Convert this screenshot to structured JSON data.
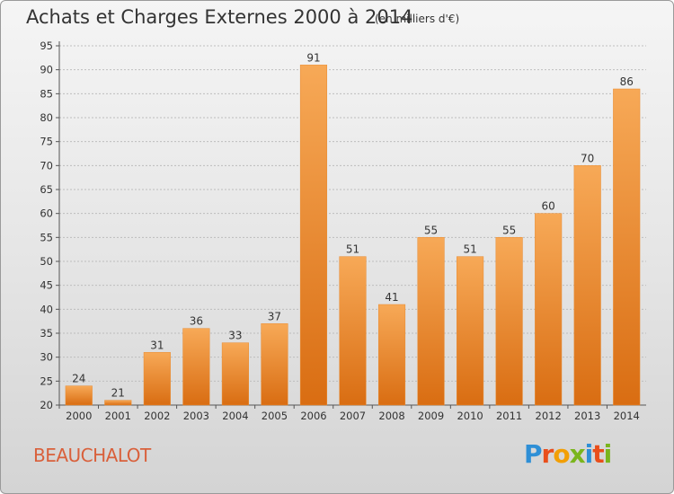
{
  "header": {
    "title": "Achats et Charges Externes 2000 à 2014",
    "subtitle": "(en milliers d'€)"
  },
  "footer": {
    "commune": "BEAUCHALOT",
    "logo_text": "Proxiti"
  },
  "colors": {
    "bar_top": "#f7a957",
    "bar_bottom": "#d96d12",
    "commune_text": "#d9603b"
  },
  "chart_data": {
    "type": "bar",
    "title": "Achats et Charges Externes 2000 à 2014",
    "subtitle": "(en milliers d'€)",
    "categories": [
      "2000",
      "2001",
      "2002",
      "2003",
      "2004",
      "2005",
      "2006",
      "2007",
      "2008",
      "2009",
      "2010",
      "2011",
      "2012",
      "2013",
      "2014"
    ],
    "values": [
      24,
      21,
      31,
      36,
      33,
      37,
      91,
      51,
      41,
      55,
      51,
      55,
      60,
      70,
      86
    ],
    "ylim": [
      20,
      95
    ],
    "yticks": [
      20,
      25,
      30,
      35,
      40,
      45,
      50,
      55,
      60,
      65,
      70,
      75,
      80,
      85,
      90,
      95
    ],
    "grid": "horizontal-dashed",
    "legend": "none"
  }
}
